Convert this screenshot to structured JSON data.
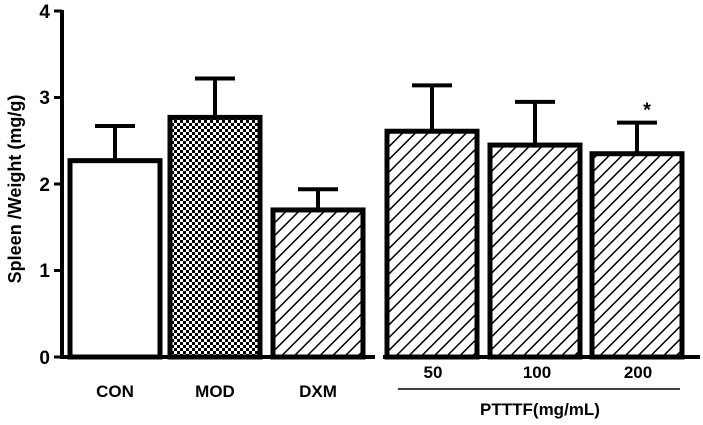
{
  "chart_data": {
    "type": "bar",
    "ylabel": "Spleen /Weight (mg/g)",
    "xlabel": "",
    "ylim": [
      0,
      4
    ],
    "yticks": [
      "0",
      "1",
      "2",
      "3",
      "4"
    ],
    "categories": [
      "CON",
      "MOD",
      "DXM",
      "50",
      "100",
      "200"
    ],
    "values": [
      2.27,
      2.77,
      1.7,
      2.61,
      2.45,
      2.35
    ],
    "errors": [
      0.4,
      0.45,
      0.24,
      0.53,
      0.5,
      0.36
    ],
    "patterns": [
      "solid-white",
      "checker",
      "diagonal",
      "diagonal",
      "diagonal",
      "diagonal"
    ],
    "significance": [
      "",
      "",
      "",
      "",
      "",
      "*"
    ],
    "group_label": "PTTTF(mg/mL)",
    "group_categories": [
      3,
      4,
      5
    ],
    "grid": false,
    "legend": "none",
    "colors": {
      "stroke": "#000000",
      "fill": "#ffffff"
    }
  }
}
